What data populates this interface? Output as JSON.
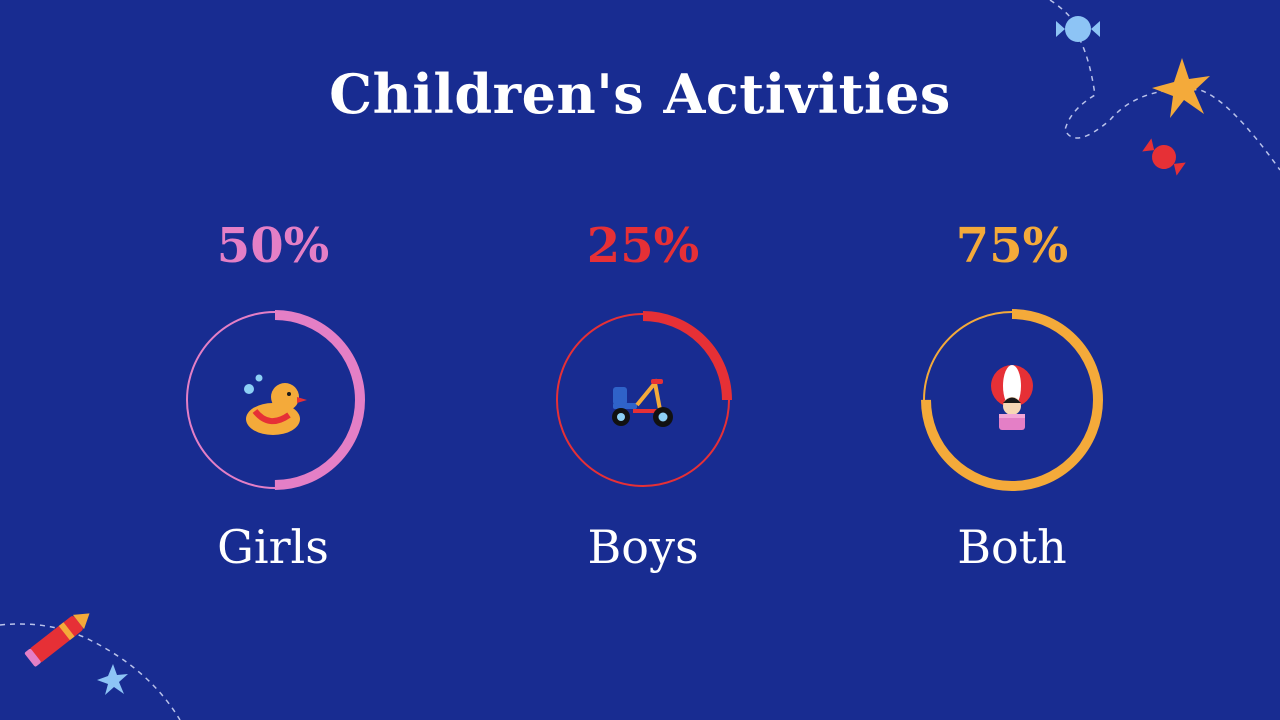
{
  "slide": {
    "title": "Children's Activities"
  },
  "stats": [
    {
      "label": "Girls",
      "percent_text": "50%",
      "percent": 50,
      "color": "#e47fc6",
      "icon": "duck-icon"
    },
    {
      "label": "Boys",
      "percent_text": "25%",
      "percent": 25,
      "color": "#e63036",
      "icon": "tricycle-icon"
    },
    {
      "label": "Both",
      "percent_text": "75%",
      "percent": 75,
      "color": "#f4aa3a",
      "icon": "hot-air-balloon-icon"
    }
  ],
  "decorations": [
    "candy-icon",
    "star-icon",
    "candy-icon",
    "crayon-icon",
    "star-icon"
  ]
}
